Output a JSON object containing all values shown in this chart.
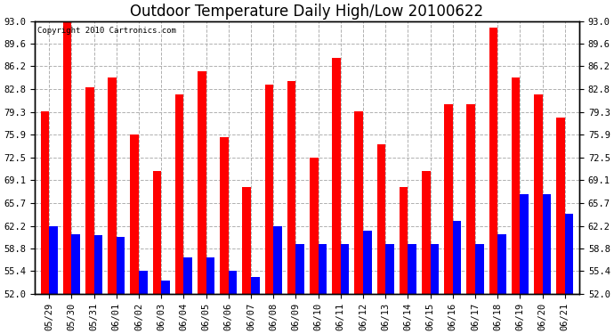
{
  "title": "Outdoor Temperature Daily High/Low 20100622",
  "copyright": "Copyright 2010 Cartronics.com",
  "categories": [
    "05/29",
    "05/30",
    "05/31",
    "06/01",
    "06/02",
    "06/03",
    "06/04",
    "06/05",
    "06/06",
    "06/07",
    "06/08",
    "06/09",
    "06/10",
    "06/11",
    "06/12",
    "06/13",
    "06/14",
    "06/15",
    "06/16",
    "06/17",
    "06/18",
    "06/19",
    "06/20",
    "06/21"
  ],
  "highs": [
    79.5,
    93.0,
    83.0,
    84.5,
    75.9,
    70.5,
    82.0,
    85.5,
    75.5,
    68.0,
    83.5,
    84.0,
    72.5,
    87.5,
    79.5,
    74.5,
    68.0,
    70.5,
    80.5,
    80.5,
    92.0,
    84.5,
    82.0,
    78.5
  ],
  "lows": [
    62.2,
    61.0,
    60.8,
    60.5,
    55.5,
    54.0,
    57.5,
    57.5,
    55.5,
    54.5,
    62.2,
    59.5,
    59.5,
    59.5,
    61.5,
    59.5,
    59.5,
    59.5,
    63.0,
    59.5,
    61.0,
    67.0,
    67.0,
    64.0
  ],
  "high_color": "#ff0000",
  "low_color": "#0000ff",
  "bg_color": "#ffffff",
  "grid_color": "#b0b0b0",
  "ylim_min": 52.0,
  "ylim_max": 93.0,
  "yticks": [
    52.0,
    55.4,
    58.8,
    62.2,
    65.7,
    69.1,
    72.5,
    75.9,
    79.3,
    82.8,
    86.2,
    89.6,
    93.0
  ],
  "bar_width": 0.38,
  "title_fontsize": 12,
  "tick_fontsize": 7.5,
  "copyright_fontsize": 6.5
}
